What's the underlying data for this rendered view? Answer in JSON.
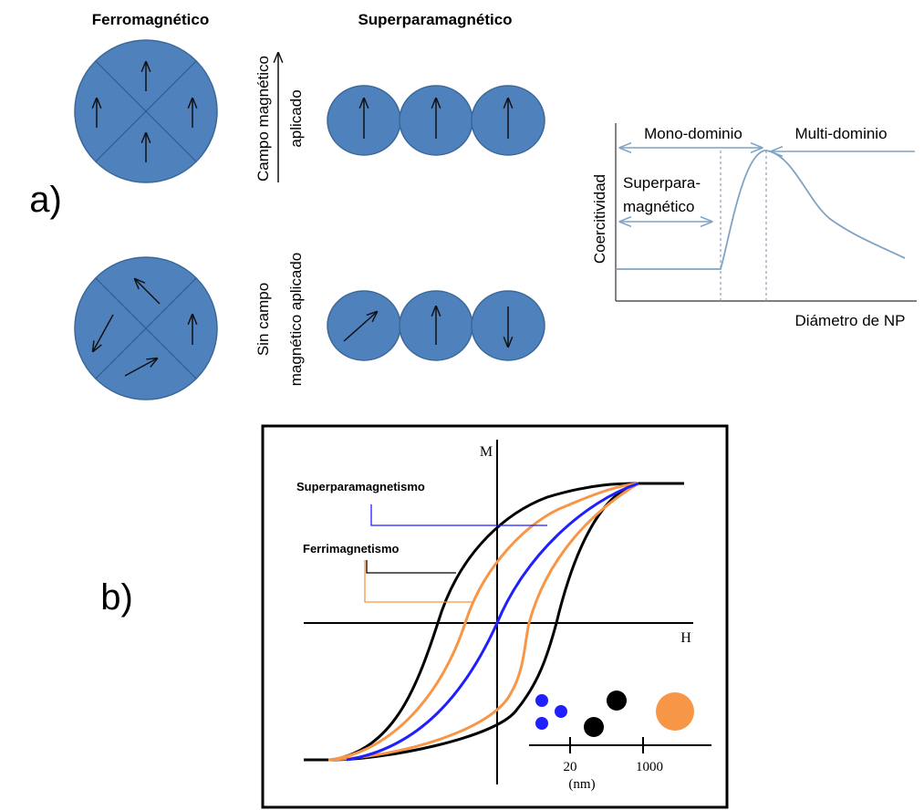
{
  "panel_a": {
    "label": "a)",
    "ferro_title": "Ferromagnético",
    "superpara_title": "Superparamagnético",
    "applied_field": [
      "Campo magnético",
      "aplicado"
    ],
    "no_field": [
      "Sin campo",
      "magnético aplicado"
    ],
    "graph": {
      "y_label": "Coercitividad",
      "x_label": "Diámetro de NP",
      "mono": "Mono-dominio",
      "multi": "Multi-dominio",
      "superpara": [
        "Superpara-",
        "magnético"
      ]
    }
  },
  "panel_b": {
    "label": "b)",
    "m_axis": "M",
    "h_axis": "H",
    "superpara": "Superparamagnetismo",
    "ferri": "Ferrimagnetismo",
    "size_ticks": [
      "20",
      "1000"
    ],
    "size_unit": "(nm)"
  }
}
